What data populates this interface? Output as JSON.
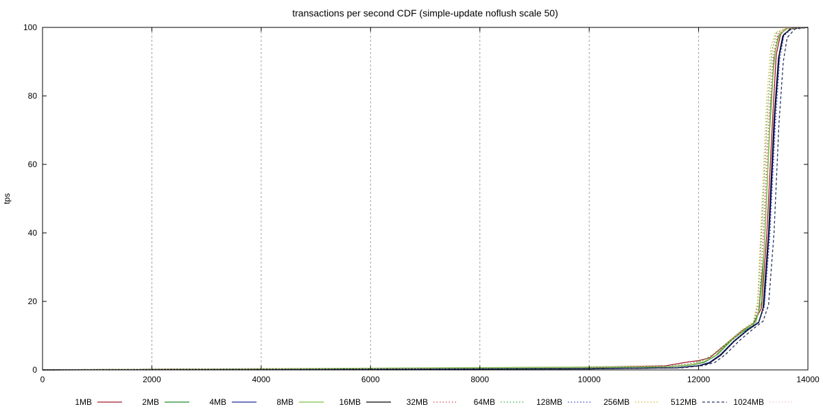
{
  "chart_data": {
    "type": "line",
    "title": "transactions per second CDF (simple-update noflush scale 50)",
    "xlabel": "",
    "ylabel": "tps",
    "xlim": [
      0,
      14000
    ],
    "ylim": [
      0,
      100
    ],
    "xticks": [
      0,
      2000,
      4000,
      6000,
      8000,
      10000,
      12000,
      14000
    ],
    "yticks": [
      0,
      20,
      40,
      60,
      80,
      100
    ],
    "grid": "vertical dashed",
    "legend_position": "bottom",
    "series": [
      {
        "name": "1MB",
        "color": "#a0162a",
        "dash": "solid",
        "x": [
          0,
          2000,
          6000,
          10000,
          11400,
          11800,
          12000,
          12200,
          12500,
          12800,
          13000,
          13150,
          13250,
          13350,
          13420,
          13500,
          13600,
          14000
        ],
        "y": [
          0,
          0.2,
          0.4,
          0.8,
          1.2,
          2.3,
          2.7,
          3.5,
          7.5,
          11.5,
          13.5,
          18,
          40,
          72,
          92,
          98,
          99.6,
          100
        ]
      },
      {
        "name": "2MB",
        "color": "#1f8b2a",
        "dash": "solid",
        "x": [
          0,
          2000,
          6000,
          10000,
          11500,
          11900,
          12100,
          12300,
          12550,
          12800,
          13000,
          13100,
          13200,
          13300,
          13380,
          13460,
          13600,
          14000
        ],
        "y": [
          0,
          0.2,
          0.3,
          0.6,
          0.9,
          1.5,
          2.2,
          4,
          8,
          11,
          13,
          17,
          35,
          70,
          91,
          97.5,
          99.6,
          100
        ]
      },
      {
        "name": "4MB",
        "color": "#1c2690",
        "dash": "solid",
        "x": [
          0,
          2000,
          6000,
          10000,
          11600,
          12000,
          12200,
          12400,
          12650,
          12900,
          13100,
          13200,
          13300,
          13400,
          13480,
          13560,
          13700,
          14000
        ],
        "y": [
          0,
          0.1,
          0.2,
          0.3,
          0.6,
          1.2,
          2.2,
          4.5,
          8.5,
          11.8,
          14,
          19,
          42,
          75,
          92,
          98,
          99.6,
          100
        ]
      },
      {
        "name": "8MB",
        "color": "#7ac142",
        "dash": "solid",
        "x": [
          0,
          2000,
          6000,
          10000,
          11500,
          11900,
          12100,
          12350,
          12600,
          12850,
          13050,
          13150,
          13230,
          13320,
          13400,
          13480,
          13620,
          14000
        ],
        "y": [
          0,
          0.2,
          0.5,
          0.8,
          1.0,
          1.6,
          2.4,
          4.5,
          8.5,
          11.8,
          14,
          20,
          45,
          78,
          93,
          98,
          99.6,
          100
        ]
      },
      {
        "name": "16MB",
        "color": "#000000",
        "dash": "solid",
        "x": [
          0,
          2000,
          6000,
          10000,
          11600,
          12000,
          12200,
          12400,
          12650,
          12900,
          13100,
          13180,
          13280,
          13380,
          13460,
          13540,
          13680,
          14000
        ],
        "y": [
          0,
          0.1,
          0.2,
          0.3,
          0.6,
          1.2,
          2.0,
          4.2,
          8.3,
          11.6,
          13.8,
          18,
          40,
          73,
          91,
          97.5,
          99.6,
          100
        ]
      },
      {
        "name": "32MB",
        "color": "#d93a4a",
        "dash": "dotted",
        "x": [
          0,
          2000,
          6000,
          10000,
          11450,
          11850,
          12050,
          12250,
          12550,
          12800,
          13000,
          13100,
          13190,
          13290,
          13370,
          13450,
          13600,
          14000
        ],
        "y": [
          0,
          0.2,
          0.4,
          0.7,
          1.0,
          1.8,
          2.6,
          4.2,
          8.2,
          11.5,
          13.6,
          18,
          40,
          74,
          92,
          98,
          99.6,
          100
        ]
      },
      {
        "name": "64MB",
        "color": "#2aa02a",
        "dash": "dotted",
        "x": [
          0,
          2000,
          6000,
          10000,
          11450,
          11850,
          12050,
          12250,
          12550,
          12800,
          13000,
          13080,
          13160,
          13260,
          13340,
          13420,
          13580,
          14000
        ],
        "y": [
          0,
          0.2,
          0.5,
          0.9,
          1.1,
          1.8,
          2.6,
          4.3,
          8.3,
          11.6,
          13.7,
          19,
          42,
          76,
          93,
          98.3,
          99.6,
          100
        ]
      },
      {
        "name": "128MB",
        "color": "#2536c8",
        "dash": "dotted",
        "x": [
          0,
          2000,
          6000,
          10000,
          11600,
          12000,
          12200,
          12400,
          12650,
          12900,
          13100,
          13200,
          13300,
          13400,
          13480,
          13560,
          13700,
          14000
        ],
        "y": [
          0,
          0.1,
          0.2,
          0.4,
          0.7,
          1.3,
          2.2,
          4.4,
          8.4,
          11.7,
          13.9,
          18,
          38,
          70,
          90,
          97.5,
          99.6,
          100
        ]
      },
      {
        "name": "256MB",
        "color": "#d4b21a",
        "dash": "dotted",
        "x": [
          0,
          2000,
          6000,
          10000,
          11500,
          11900,
          12100,
          12300,
          12550,
          12800,
          13000,
          13080,
          13150,
          13240,
          13320,
          13400,
          13560,
          14000
        ],
        "y": [
          0,
          0.2,
          0.4,
          0.8,
          1.0,
          1.7,
          2.5,
          4.3,
          8.4,
          11.8,
          14,
          20,
          45,
          78,
          94,
          98.5,
          99.6,
          100
        ]
      },
      {
        "name": "512MB",
        "color": "#26305e",
        "dash": "dashed",
        "x": [
          0,
          2000,
          6000,
          10000,
          11700,
          12100,
          12300,
          12500,
          12750,
          13000,
          13180,
          13280,
          13380,
          13470,
          13550,
          13620,
          13760,
          14000
        ],
        "y": [
          0,
          0.1,
          0.2,
          0.3,
          0.6,
          1.3,
          2.2,
          4.6,
          8.6,
          12,
          14.2,
          19,
          40,
          72,
          90,
          97,
          99.5,
          100
        ]
      },
      {
        "name": "1024MB",
        "color": "#f2b8bd",
        "dash": "dotted",
        "x": [
          0,
          2000,
          6000,
          10000,
          11500,
          11900,
          12100,
          12300,
          12550,
          12800,
          13000,
          13100,
          13180,
          13270,
          13350,
          13430,
          13580,
          14000
        ],
        "y": [
          0,
          0.2,
          0.4,
          0.8,
          1.0,
          1.7,
          2.5,
          4.2,
          8.2,
          11.6,
          13.8,
          19,
          42,
          75,
          92,
          98,
          99.6,
          100
        ]
      }
    ]
  }
}
